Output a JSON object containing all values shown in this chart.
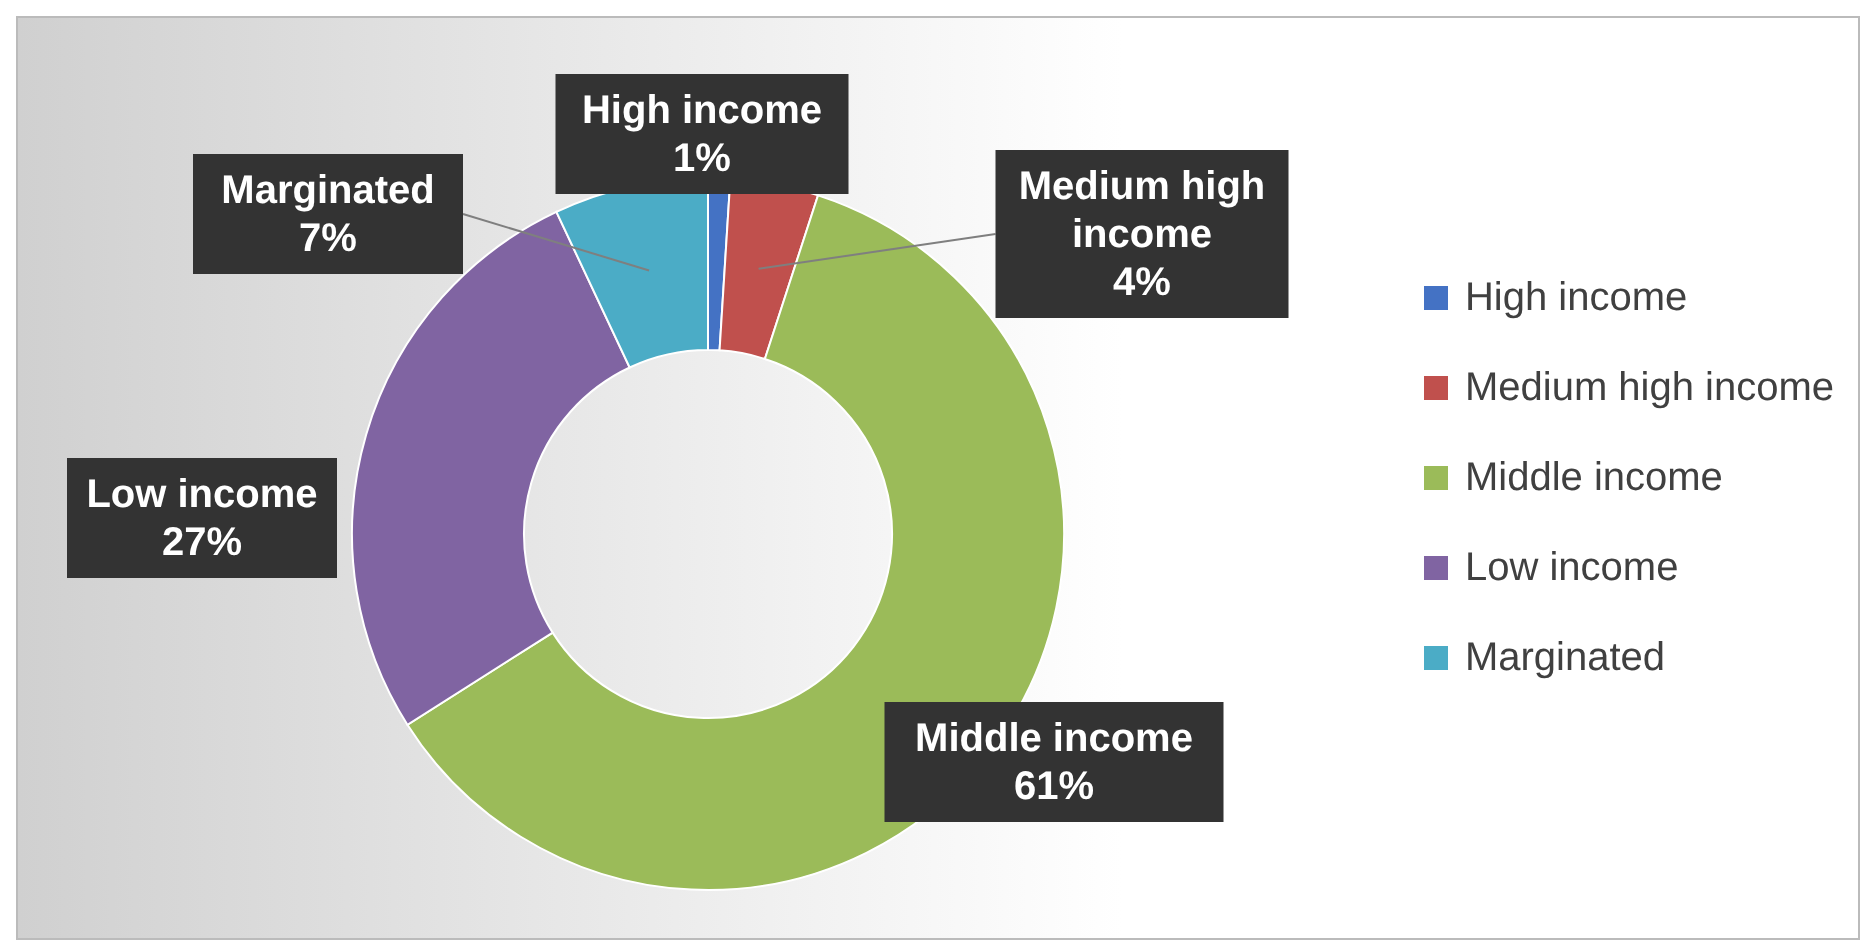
{
  "chart_data": {
    "type": "donut",
    "categories": [
      "High income",
      "Medium high income",
      "Middle income",
      "Low income",
      "Marginated"
    ],
    "values": [
      1,
      4,
      61,
      27,
      7
    ],
    "value_labels": [
      "1%",
      "4%",
      "61%",
      "27%",
      "7%"
    ],
    "colors": [
      "#4472c4",
      "#c0504d",
      "#9bbb59",
      "#8064a2",
      "#4bacc6"
    ],
    "legend": "right"
  }
}
